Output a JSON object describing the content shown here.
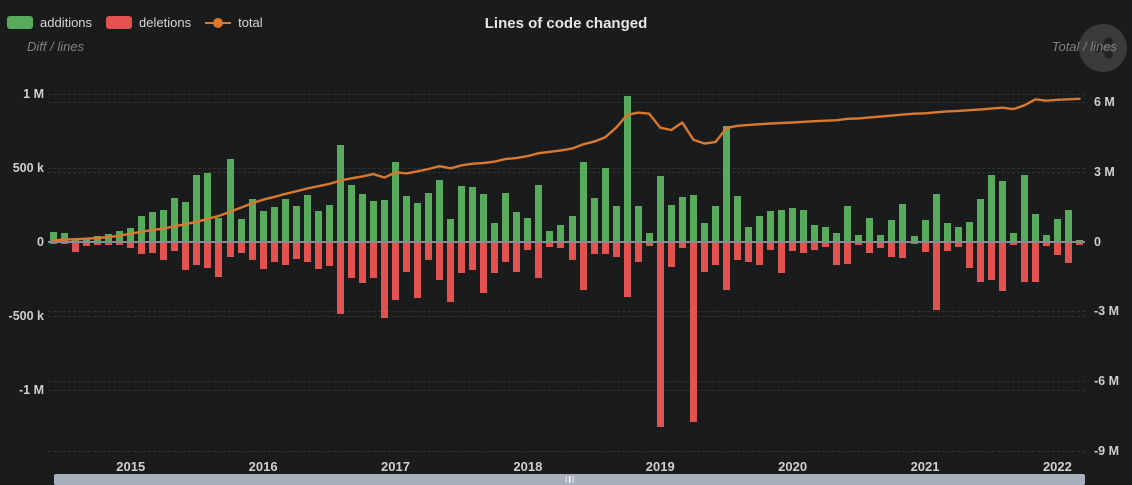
{
  "header": {
    "title": "Lines of code changed",
    "left_axis_name": "Diff / lines",
    "right_axis_name": "Total / lines",
    "legend": [
      {
        "label": "additions",
        "color": "#57ab5a",
        "type": "bar"
      },
      {
        "label": "deletions",
        "color": "#e2534f",
        "type": "bar"
      },
      {
        "label": "total",
        "color": "#d9782e",
        "type": "line"
      }
    ]
  },
  "colors": {
    "background": "#191b1d",
    "additions": "#57ab5a",
    "deletions": "#e2534f",
    "total_line": "#d9782e",
    "grid": "rgba(205,195,175,0.14)",
    "axis_text": "#cfcfcf",
    "scrollbar": "#a6afbb"
  },
  "chart_data": {
    "type": "bar",
    "subtype": "monthly diff bars (left axis) + cumulative total line (right axis)",
    "title": "Lines of code changed",
    "xlabel": "",
    "ylabel_left": "Diff / lines",
    "ylabel_right": "Total / lines",
    "grid": "dashed horizontal",
    "legend_position": "top-left",
    "left_axis": {
      "unit": "lines",
      "ylim_k": [
        -1350,
        1100
      ],
      "ticks": [
        {
          "v": 1000,
          "label": "1 M"
        },
        {
          "v": 500,
          "label": "500 k"
        },
        {
          "v": 0,
          "label": "0"
        },
        {
          "v": -500,
          "label": "-500 k"
        },
        {
          "v": -1000,
          "label": "-1 M"
        }
      ]
    },
    "right_axis": {
      "unit": "lines",
      "ylim_M": [
        -9.4,
        6.6
      ],
      "ticks": [
        {
          "v": 6,
          "label": "6 M"
        },
        {
          "v": 3,
          "label": "3 M"
        },
        {
          "v": 0,
          "label": "0"
        },
        {
          "v": -3,
          "label": "-3 M"
        },
        {
          "v": -6,
          "label": "-6 M"
        },
        {
          "v": -9,
          "label": "-9 M"
        }
      ]
    },
    "x_axis": {
      "visible_year_labels": [
        "2015",
        "2016",
        "2017",
        "2018",
        "2019",
        "2020",
        "2021",
        "2022"
      ]
    },
    "categories": [
      "2014-06",
      "2014-07",
      "2014-08",
      "2014-09",
      "2014-10",
      "2014-11",
      "2014-12",
      "2015-01",
      "2015-02",
      "2015-03",
      "2015-04",
      "2015-05",
      "2015-06",
      "2015-07",
      "2015-08",
      "2015-09",
      "2015-10",
      "2015-11",
      "2015-12",
      "2016-01",
      "2016-02",
      "2016-03",
      "2016-04",
      "2016-05",
      "2016-06",
      "2016-07",
      "2016-08",
      "2016-09",
      "2016-10",
      "2016-11",
      "2016-12",
      "2017-01",
      "2017-02",
      "2017-03",
      "2017-04",
      "2017-05",
      "2017-06",
      "2017-07",
      "2017-08",
      "2017-09",
      "2017-10",
      "2017-11",
      "2017-12",
      "2018-01",
      "2018-02",
      "2018-03",
      "2018-04",
      "2018-05",
      "2018-06",
      "2018-07",
      "2018-08",
      "2018-09",
      "2018-10",
      "2018-11",
      "2018-12",
      "2019-01",
      "2019-02",
      "2019-03",
      "2019-04",
      "2019-05",
      "2019-06",
      "2019-07",
      "2019-08",
      "2019-09",
      "2019-10",
      "2019-11",
      "2019-12",
      "2020-01",
      "2020-02",
      "2020-03",
      "2020-04",
      "2020-05",
      "2020-06",
      "2020-07",
      "2020-08",
      "2020-09",
      "2020-10",
      "2020-11",
      "2020-12",
      "2021-01",
      "2021-02",
      "2021-03",
      "2021-04",
      "2021-05",
      "2021-06",
      "2021-07",
      "2021-08",
      "2021-09",
      "2021-10",
      "2021-11",
      "2021-12",
      "2022-01",
      "2022-02",
      "2022-03"
    ],
    "series": [
      {
        "name": "additions",
        "type": "bar",
        "axis": "left",
        "unit": "k lines",
        "values": [
          62,
          56,
          8,
          27,
          40,
          54,
          68,
          88,
          175,
          196,
          212,
          297,
          264,
          447,
          460,
          162,
          555,
          151,
          285,
          203,
          230,
          290,
          240,
          314,
          203,
          245,
          650,
          380,
          320,
          275,
          281,
          534,
          308,
          259,
          331,
          414,
          155,
          376,
          369,
          324,
          122,
          331,
          200,
          162,
          380,
          68,
          113,
          169,
          534,
          297,
          495,
          237,
          985,
          241,
          56,
          444,
          248,
          302,
          315,
          124,
          237,
          782,
          308,
          101,
          169,
          203,
          214,
          225,
          214,
          113,
          101,
          56,
          237,
          45,
          158,
          45,
          147,
          254,
          34,
          147,
          322,
          124,
          101,
          130,
          290,
          447,
          412,
          56,
          450,
          187,
          45,
          154,
          210,
          12
        ]
      },
      {
        "name": "deletions",
        "type": "bar",
        "axis": "left",
        "unit": "k lines",
        "values": [
          -8,
          -10,
          -62,
          -27,
          -20,
          -15,
          -20,
          -34,
          -75,
          -70,
          -118,
          -60,
          -187,
          -155,
          -175,
          -230,
          -100,
          -74,
          -120,
          -176,
          -130,
          -150,
          -110,
          -135,
          -176,
          -160,
          -480,
          -243,
          -277,
          -243,
          -513,
          -390,
          -198,
          -378,
          -119,
          -254,
          -400,
          -209,
          -187,
          -344,
          -209,
          -131,
          -198,
          -52,
          -243,
          -30,
          -35,
          -119,
          -322,
          -80,
          -80,
          -97,
          -367,
          -131,
          -25,
          -1246,
          -164,
          -40,
          -1212,
          -198,
          -153,
          -322,
          -119,
          -131,
          -153,
          -52,
          -209,
          -60,
          -74,
          -52,
          -30,
          -153,
          -142,
          -20,
          -74,
          -40,
          -95,
          -106,
          -12,
          -61,
          -455,
          -56,
          -30,
          -174,
          -264,
          -250,
          -331,
          -15,
          -264,
          -270,
          -25,
          -84,
          -140,
          -20
        ]
      },
      {
        "name": "total",
        "type": "line",
        "axis": "right",
        "unit": "M lines",
        "values": [
          0.05,
          0.08,
          0.1,
          0.12,
          0.15,
          0.19,
          0.25,
          0.34,
          0.42,
          0.5,
          0.56,
          0.66,
          0.75,
          0.85,
          0.98,
          1.1,
          1.28,
          1.46,
          1.65,
          1.8,
          1.92,
          2.05,
          2.16,
          2.28,
          2.38,
          2.48,
          2.62,
          2.72,
          2.8,
          2.9,
          2.75,
          2.98,
          2.93,
          3.02,
          3.12,
          3.24,
          3.15,
          3.28,
          3.35,
          3.38,
          3.44,
          3.55,
          3.6,
          3.68,
          3.8,
          3.86,
          3.92,
          4.0,
          4.18,
          4.3,
          4.48,
          4.9,
          5.45,
          5.55,
          5.5,
          4.9,
          4.8,
          5.12,
          4.38,
          4.22,
          4.28,
          4.88,
          4.98,
          5.02,
          5.05,
          5.08,
          5.1,
          5.12,
          5.15,
          5.18,
          5.2,
          5.22,
          5.28,
          5.3,
          5.34,
          5.38,
          5.42,
          5.46,
          5.5,
          5.52,
          5.56,
          5.6,
          5.62,
          5.65,
          5.68,
          5.72,
          5.76,
          5.7,
          5.86,
          6.12,
          6.06,
          6.1,
          6.12,
          6.14
        ]
      }
    ]
  },
  "scrollbar": {
    "window_start_pct": 0,
    "window_end_pct": 100
  }
}
